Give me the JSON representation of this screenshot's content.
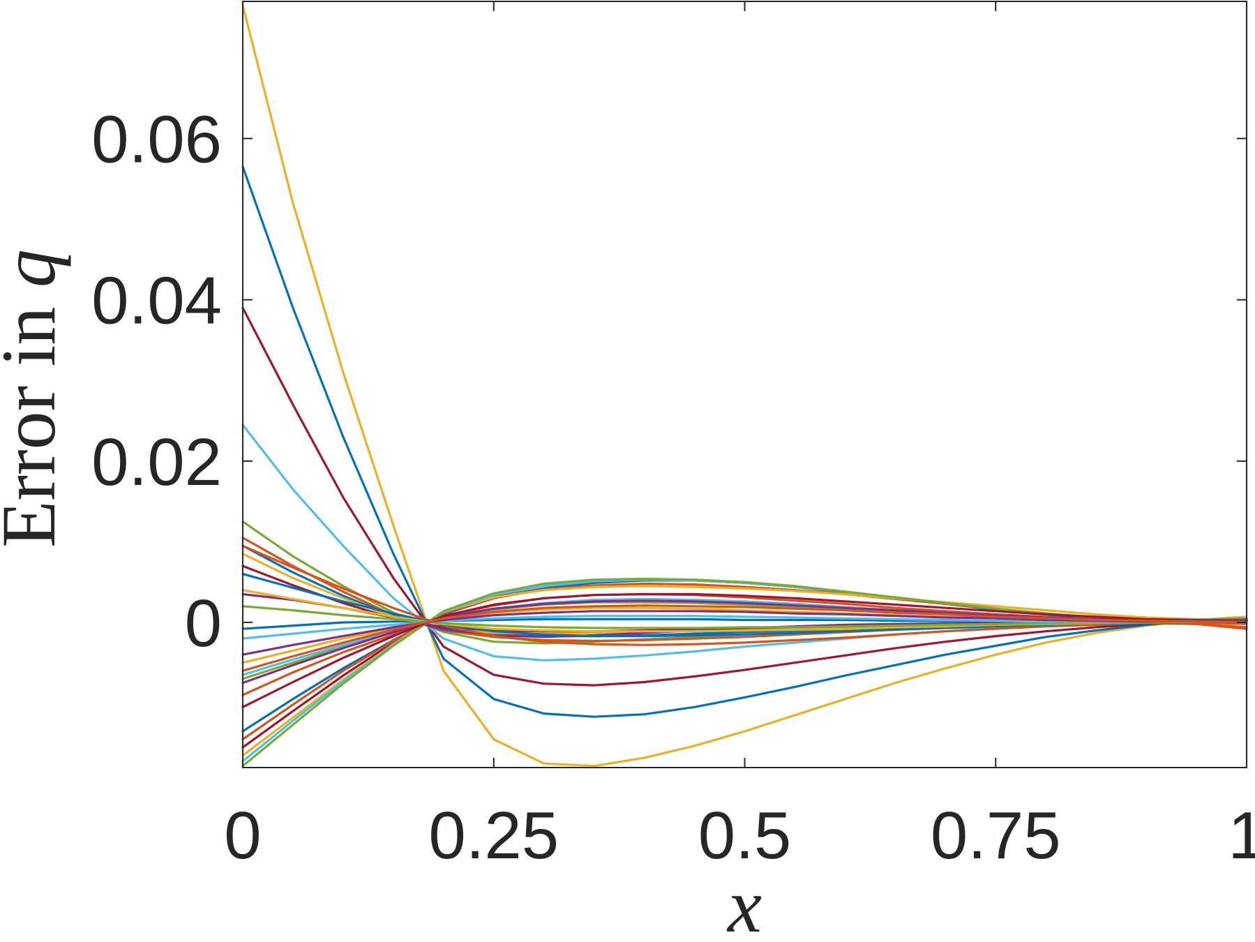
{
  "chart_data": {
    "type": "line",
    "title": "",
    "xlabel_text": "x",
    "ylabel_prefix": "Error in ",
    "ylabel_var": "q",
    "xlim": [
      0,
      1
    ],
    "ylim": [
      -0.018,
      0.077
    ],
    "xticks": [
      0,
      0.25,
      0.5,
      0.75,
      1
    ],
    "xtick_labels": [
      "0",
      "0.25",
      "0.5",
      "0.75",
      "1"
    ],
    "yticks": [
      0,
      0.02,
      0.04,
      0.06
    ],
    "ytick_labels": [
      "0",
      "0.02",
      "0.04",
      "0.06"
    ],
    "grid": false,
    "legend": "none",
    "colors": [
      "#0072BD",
      "#D95319",
      "#EDB120",
      "#7E2F8E",
      "#77AC30",
      "#4DBEEE",
      "#A2142F"
    ],
    "x": [
      0,
      0.05,
      0.1,
      0.15,
      0.2,
      0.25,
      0.3,
      0.35,
      0.4,
      0.45,
      0.5,
      0.55,
      0.6,
      0.65,
      0.7,
      0.75,
      0.8,
      0.85,
      0.9,
      0.95,
      1.0
    ],
    "series": [
      {
        "color": "#EDB120",
        "values": [
          0.0765,
          0.052,
          0.031,
          0.012,
          -0.006,
          -0.0145,
          -0.0175,
          -0.0178,
          -0.0168,
          -0.0153,
          -0.0135,
          -0.0115,
          -0.0095,
          -0.0075,
          -0.0057,
          -0.004,
          -0.0025,
          -0.0013,
          -0.0004,
          0.0003,
          0.0007
        ]
      },
      {
        "color": "#0072BD",
        "values": [
          0.0565,
          0.039,
          0.023,
          0.0085,
          -0.0045,
          -0.0095,
          -0.0113,
          -0.0117,
          -0.0114,
          -0.0105,
          -0.0093,
          -0.008,
          -0.0066,
          -0.0053,
          -0.004,
          -0.0029,
          -0.0018,
          -0.001,
          -0.0003,
          0.0002,
          0.0005
        ]
      },
      {
        "color": "#A2142F",
        "values": [
          0.039,
          0.027,
          0.0155,
          0.0055,
          -0.003,
          -0.0065,
          -0.0076,
          -0.0078,
          -0.0074,
          -0.0067,
          -0.0059,
          -0.005,
          -0.0041,
          -0.0032,
          -0.0024,
          -0.0017,
          -0.0011,
          -0.0006,
          -0.0002,
          0.0001,
          0.0003
        ]
      },
      {
        "color": "#4DBEEE",
        "values": [
          0.0245,
          0.0165,
          0.0095,
          0.003,
          -0.002,
          -0.0042,
          -0.0047,
          -0.0045,
          -0.0041,
          -0.0036,
          -0.003,
          -0.0025,
          -0.002,
          -0.0015,
          -0.0011,
          -0.0007,
          -0.0004,
          -0.0002,
          0.0,
          0.0001,
          0.0002
        ]
      },
      {
        "color": "#77AC30",
        "values": [
          0.0125,
          0.0082,
          0.0045,
          0.0012,
          -0.0012,
          -0.0024,
          -0.0026,
          -0.0024,
          -0.0021,
          -0.0018,
          -0.0015,
          -0.0012,
          -0.0009,
          -0.0007,
          -0.0005,
          -0.0003,
          -0.0001,
          0.0,
          0.0001,
          0.0001,
          0.0002
        ]
      },
      {
        "color": "#D95319",
        "values": [
          0.0105,
          0.007,
          0.0038,
          0.0009,
          -0.001,
          -0.0018,
          -0.0022,
          -0.0023,
          -0.0022,
          -0.002,
          -0.0018,
          -0.0015,
          -0.0012,
          -0.0009,
          -0.0006,
          -0.0004,
          -0.0002,
          -0.0001,
          0.0,
          -0.0002,
          -0.0008
        ]
      },
      {
        "color": "#0072BD",
        "values": [
          0.0095,
          0.0062,
          0.0033,
          0.0008,
          -0.0009,
          -0.0015,
          -0.0017,
          -0.0017,
          -0.0016,
          -0.0014,
          -0.0012,
          -0.001,
          -0.0008,
          -0.0006,
          -0.0004,
          -0.0003,
          -0.0001,
          0.0,
          0.0,
          0.0001,
          0.0002
        ]
      },
      {
        "color": "#EDB120",
        "values": [
          0.0085,
          0.0055,
          0.003,
          0.0007,
          -0.0008,
          -0.0013,
          -0.0014,
          -0.0013,
          -0.0012,
          -0.001,
          -0.0009,
          -0.0007,
          -0.0006,
          -0.0004,
          -0.0003,
          -0.0002,
          -0.0001,
          0.0,
          0.0,
          0.0001,
          0.0002
        ]
      },
      {
        "color": "#A2142F",
        "values": [
          0.007,
          0.0046,
          0.0024,
          0.0005,
          -0.0006,
          -0.001,
          -0.0011,
          -0.0011,
          -0.001,
          -0.0009,
          -0.0007,
          -0.0006,
          -0.0005,
          -0.0004,
          -0.0003,
          -0.0002,
          -0.0001,
          0.0,
          0.0,
          0.0001,
          0.0002
        ]
      },
      {
        "color": "#7E2F8E",
        "values": [
          0.0035,
          0.0028,
          0.0018,
          0.0006,
          -0.0008,
          -0.0016,
          -0.0018,
          -0.0016,
          -0.0013,
          -0.001,
          -0.0007,
          -0.0005,
          -0.0003,
          -0.0002,
          -0.0001,
          0.0,
          0.0,
          0.0001,
          0.0001,
          0.0002,
          0.0003
        ]
      },
      {
        "color": "#0072BD",
        "values": [
          -0.0008,
          -0.0004,
          0.0,
          0.0001,
          0.0002,
          0.0003,
          0.0004,
          0.0004,
          0.0004,
          0.0004,
          0.0003,
          0.0003,
          0.0003,
          0.0002,
          0.0002,
          0.0002,
          0.0001,
          0.0001,
          0.0001,
          0.0002,
          0.0003
        ]
      },
      {
        "color": "#EDB120",
        "values": [
          -0.005,
          -0.0035,
          -0.002,
          -0.0008,
          0.0004,
          0.0012,
          0.0016,
          0.0018,
          0.0018,
          0.0017,
          0.0015,
          0.0013,
          0.0011,
          0.0009,
          0.0007,
          0.0005,
          0.0003,
          0.0002,
          0.0001,
          0.0002,
          0.0004
        ]
      },
      {
        "color": "#77AC30",
        "values": [
          -0.007,
          -0.005,
          -0.003,
          -0.0012,
          0.0005,
          0.0016,
          0.0022,
          0.0025,
          0.0025,
          0.0024,
          0.0022,
          0.0019,
          0.0016,
          0.0013,
          0.001,
          0.0007,
          0.0005,
          0.0003,
          0.0002,
          0.0003,
          0.0005
        ]
      },
      {
        "color": "#D95319",
        "values": [
          -0.009,
          -0.0062,
          -0.0037,
          -0.0015,
          0.0007,
          0.0021,
          0.003,
          0.0034,
          0.0035,
          0.0034,
          0.0031,
          0.0027,
          0.0023,
          0.0018,
          0.0014,
          0.001,
          0.0007,
          0.0004,
          0.0002,
          0.0003,
          0.0005
        ]
      },
      {
        "color": "#4DBEEE",
        "values": [
          -0.0065,
          -0.0046,
          -0.0028,
          -0.0011,
          0.0006,
          0.0017,
          0.0024,
          0.0028,
          0.0029,
          0.0028,
          0.0026,
          0.0023,
          0.0019,
          0.0015,
          0.0012,
          0.0009,
          0.0006,
          0.0004,
          0.0002,
          0.0003,
          0.0004
        ]
      },
      {
        "color": "#0072BD",
        "values": [
          -0.0135,
          -0.0095,
          -0.0057,
          -0.0022,
          0.001,
          0.003,
          0.0042,
          0.0049,
          0.0052,
          0.0052,
          0.0049,
          0.0044,
          0.0037,
          0.003,
          0.0023,
          0.0016,
          0.001,
          0.0005,
          0.0002,
          0.0002,
          0.0004
        ]
      },
      {
        "color": "#A2142F",
        "values": [
          -0.0155,
          -0.011,
          -0.0066,
          -0.0025,
          0.0012,
          0.0033,
          0.0045,
          0.0051,
          0.0053,
          0.0052,
          0.0049,
          0.0044,
          0.0038,
          0.0031,
          0.0024,
          0.0017,
          0.0011,
          0.0006,
          0.0003,
          0.0003,
          0.0004
        ]
      },
      {
        "color": "#D95319",
        "values": [
          -0.0145,
          -0.0102,
          -0.006,
          -0.0023,
          0.0011,
          0.003,
          0.0041,
          0.0046,
          0.0048,
          0.0047,
          0.0044,
          0.004,
          0.0035,
          0.0029,
          0.0023,
          0.0017,
          0.0011,
          0.0006,
          0.0002,
          0.0,
          -0.0002
        ]
      },
      {
        "color": "#EDB120",
        "values": [
          -0.0165,
          -0.0118,
          -0.0071,
          -0.0027,
          0.0013,
          0.0031,
          0.004,
          0.0044,
          0.0045,
          0.0044,
          0.0042,
          0.0039,
          0.0035,
          0.003,
          0.0025,
          0.002,
          0.0015,
          0.001,
          0.0006,
          0.0004,
          0.0003
        ]
      },
      {
        "color": "#4DBEEE",
        "values": [
          -0.0172,
          -0.0122,
          -0.0073,
          -0.0028,
          0.0013,
          0.0034,
          0.0045,
          0.0051,
          0.0053,
          0.0052,
          0.0049,
          0.0044,
          0.0038,
          0.0031,
          0.0024,
          0.0017,
          0.0011,
          0.0006,
          0.0003,
          0.0003,
          0.0005
        ]
      },
      {
        "color": "#77AC30",
        "values": [
          -0.0178,
          -0.0127,
          -0.0076,
          -0.0029,
          0.0014,
          0.0036,
          0.0048,
          0.0053,
          0.0054,
          0.0053,
          0.005,
          0.0045,
          0.0038,
          0.0031,
          0.0024,
          0.0017,
          0.0011,
          0.0006,
          0.0003,
          0.0003,
          0.0005
        ]
      },
      {
        "color": "#7E2F8E",
        "values": [
          -0.0075,
          -0.0053,
          -0.0032,
          -0.0012,
          0.0006,
          0.0017,
          0.0023,
          0.0026,
          0.0027,
          0.0026,
          0.0024,
          0.0021,
          0.0018,
          0.0015,
          0.0012,
          0.0009,
          0.0006,
          0.0004,
          0.0002,
          0.0002,
          0.0003
        ]
      },
      {
        "color": "#A2142F",
        "values": [
          -0.0105,
          -0.0074,
          -0.0044,
          -0.0017,
          0.0008,
          0.0022,
          0.003,
          0.0034,
          0.0035,
          0.0035,
          0.0033,
          0.003,
          0.0026,
          0.0022,
          0.0018,
          0.0014,
          0.001,
          0.0007,
          0.0004,
          0.0003,
          0.0003
        ]
      },
      {
        "color": "#D95319",
        "values": [
          0.0095,
          0.0068,
          0.0042,
          0.0018,
          -0.0004,
          -0.0017,
          -0.0024,
          -0.0027,
          -0.0028,
          -0.0027,
          -0.0025,
          -0.0022,
          -0.0019,
          -0.0015,
          -0.0011,
          -0.0008,
          -0.0005,
          -0.0003,
          -0.0001,
          -0.0002,
          -0.0006
        ]
      },
      {
        "color": "#0072BD",
        "values": [
          0.006,
          0.0043,
          0.0026,
          0.0011,
          -0.0003,
          -0.0011,
          -0.0015,
          -0.0017,
          -0.0017,
          -0.0016,
          -0.0015,
          -0.0013,
          -0.0011,
          -0.0009,
          -0.0007,
          -0.0005,
          -0.0003,
          -0.0002,
          -0.0001,
          0.0001,
          0.0002
        ]
      },
      {
        "color": "#EDB120",
        "values": [
          0.004,
          0.0029,
          0.0018,
          0.0007,
          -0.0002,
          -0.0008,
          -0.001,
          -0.0011,
          -0.0011,
          -0.0011,
          -0.001,
          -0.0009,
          -0.0008,
          -0.0006,
          -0.0005,
          -0.0003,
          -0.0002,
          -0.0001,
          0.0,
          0.0001,
          0.0002
        ]
      },
      {
        "color": "#77AC30",
        "values": [
          0.002,
          0.0015,
          0.0009,
          0.0004,
          -0.0001,
          -0.0004,
          -0.0006,
          -0.0007,
          -0.0007,
          -0.0007,
          -0.0006,
          -0.0006,
          -0.0005,
          -0.0004,
          -0.0003,
          -0.0002,
          -0.0001,
          0.0,
          0.0,
          0.0001,
          0.0002
        ]
      },
      {
        "color": "#4DBEEE",
        "values": [
          -0.002,
          -0.0014,
          -0.0008,
          -0.0003,
          0.0002,
          0.0005,
          0.0007,
          0.0008,
          0.0008,
          0.0008,
          0.0007,
          0.0006,
          0.0005,
          0.0004,
          0.0003,
          0.0002,
          0.0001,
          0.0001,
          0.0001,
          0.0002,
          0.0003
        ]
      },
      {
        "color": "#7E2F8E",
        "values": [
          -0.004,
          -0.0028,
          -0.0017,
          -0.0006,
          0.0003,
          0.0009,
          0.0012,
          0.0014,
          0.0014,
          0.0014,
          0.0013,
          0.0011,
          0.001,
          0.0008,
          0.0006,
          0.0005,
          0.0003,
          0.0002,
          0.0001,
          0.0002,
          0.0003
        ]
      },
      {
        "color": "#D95319",
        "values": [
          -0.006,
          -0.0042,
          -0.0025,
          -0.0009,
          0.0005,
          0.0013,
          0.0018,
          0.002,
          0.0021,
          0.002,
          0.0019,
          0.0017,
          0.0015,
          0.0012,
          0.001,
          0.0007,
          0.0005,
          0.0003,
          0.0002,
          0.0001,
          0.0
        ]
      }
    ]
  }
}
